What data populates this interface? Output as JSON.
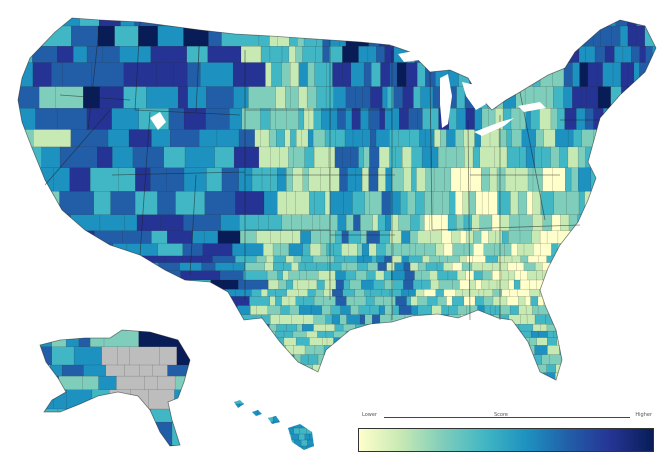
{
  "map": {
    "region": "United States counties",
    "colormap": {
      "name": "YlGnBu",
      "stops": [
        "#ffffcc",
        "#c7e9b4",
        "#7fcdbb",
        "#41b6c4",
        "#1d91c0",
        "#225ea8",
        "#253494",
        "#081d58"
      ]
    },
    "no_data_color": "#bdbdbd",
    "lake_color": "#ffffff"
  },
  "legend": {
    "low_label": "Lower",
    "mid_label": "Score",
    "high_label": "Higher"
  }
}
